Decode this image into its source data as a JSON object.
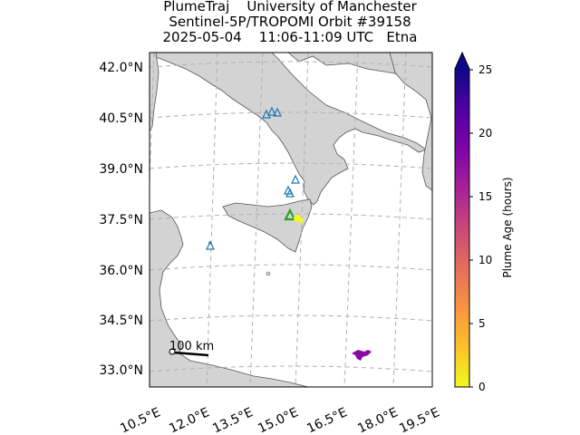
{
  "title": {
    "line1": "PlumeTraj    University of Manchester",
    "line2": "Sentinel-5P/TROPOMI Orbit #39158",
    "line3": "2025-05-04    11:06-11:09 UTC   Etna"
  },
  "map": {
    "lat_ticks": [
      "42.0°N",
      "40.5°N",
      "39.0°N",
      "37.5°N",
      "36.0°N",
      "34.5°N",
      "33.0°N"
    ],
    "lon_ticks": [
      "10.5°E",
      "12.0°E",
      "13.5°E",
      "15.0°E",
      "16.5°E",
      "18.0°E",
      "19.5°E"
    ],
    "lon_range": [
      10.5,
      19.5
    ],
    "lat_range": [
      32.5,
      42.5
    ],
    "land_color": "#d3d3d3",
    "gridlines": true,
    "scale_bar_label": "100 km",
    "volcano_marker": {
      "name": "Etna",
      "lat": 37.75,
      "lon": 15.0,
      "color": "#2ca02c"
    },
    "other_volcanoes": [
      {
        "lat": 40.82,
        "lon": 14.43
      },
      {
        "lat": 40.85,
        "lon": 14.2
      },
      {
        "lat": 40.78,
        "lon": 14.0
      },
      {
        "lat": 38.79,
        "lon": 15.21
      },
      {
        "lat": 38.4,
        "lon": 14.96
      },
      {
        "lat": 38.5,
        "lon": 14.95
      },
      {
        "lat": 36.78,
        "lon": 12.0
      }
    ],
    "plume_points": [
      {
        "lat": 37.6,
        "lon": 15.3,
        "age_hours": 0.5
      },
      {
        "lat": 33.5,
        "lon": 18.7,
        "age_hours": 21
      }
    ]
  },
  "colorbar": {
    "label": "Plume Age (hours)",
    "ticks": [
      "0",
      "5",
      "10",
      "15",
      "20",
      "25"
    ],
    "min": 0,
    "max": 25,
    "colormap": "plasma_r",
    "extend": "max"
  }
}
